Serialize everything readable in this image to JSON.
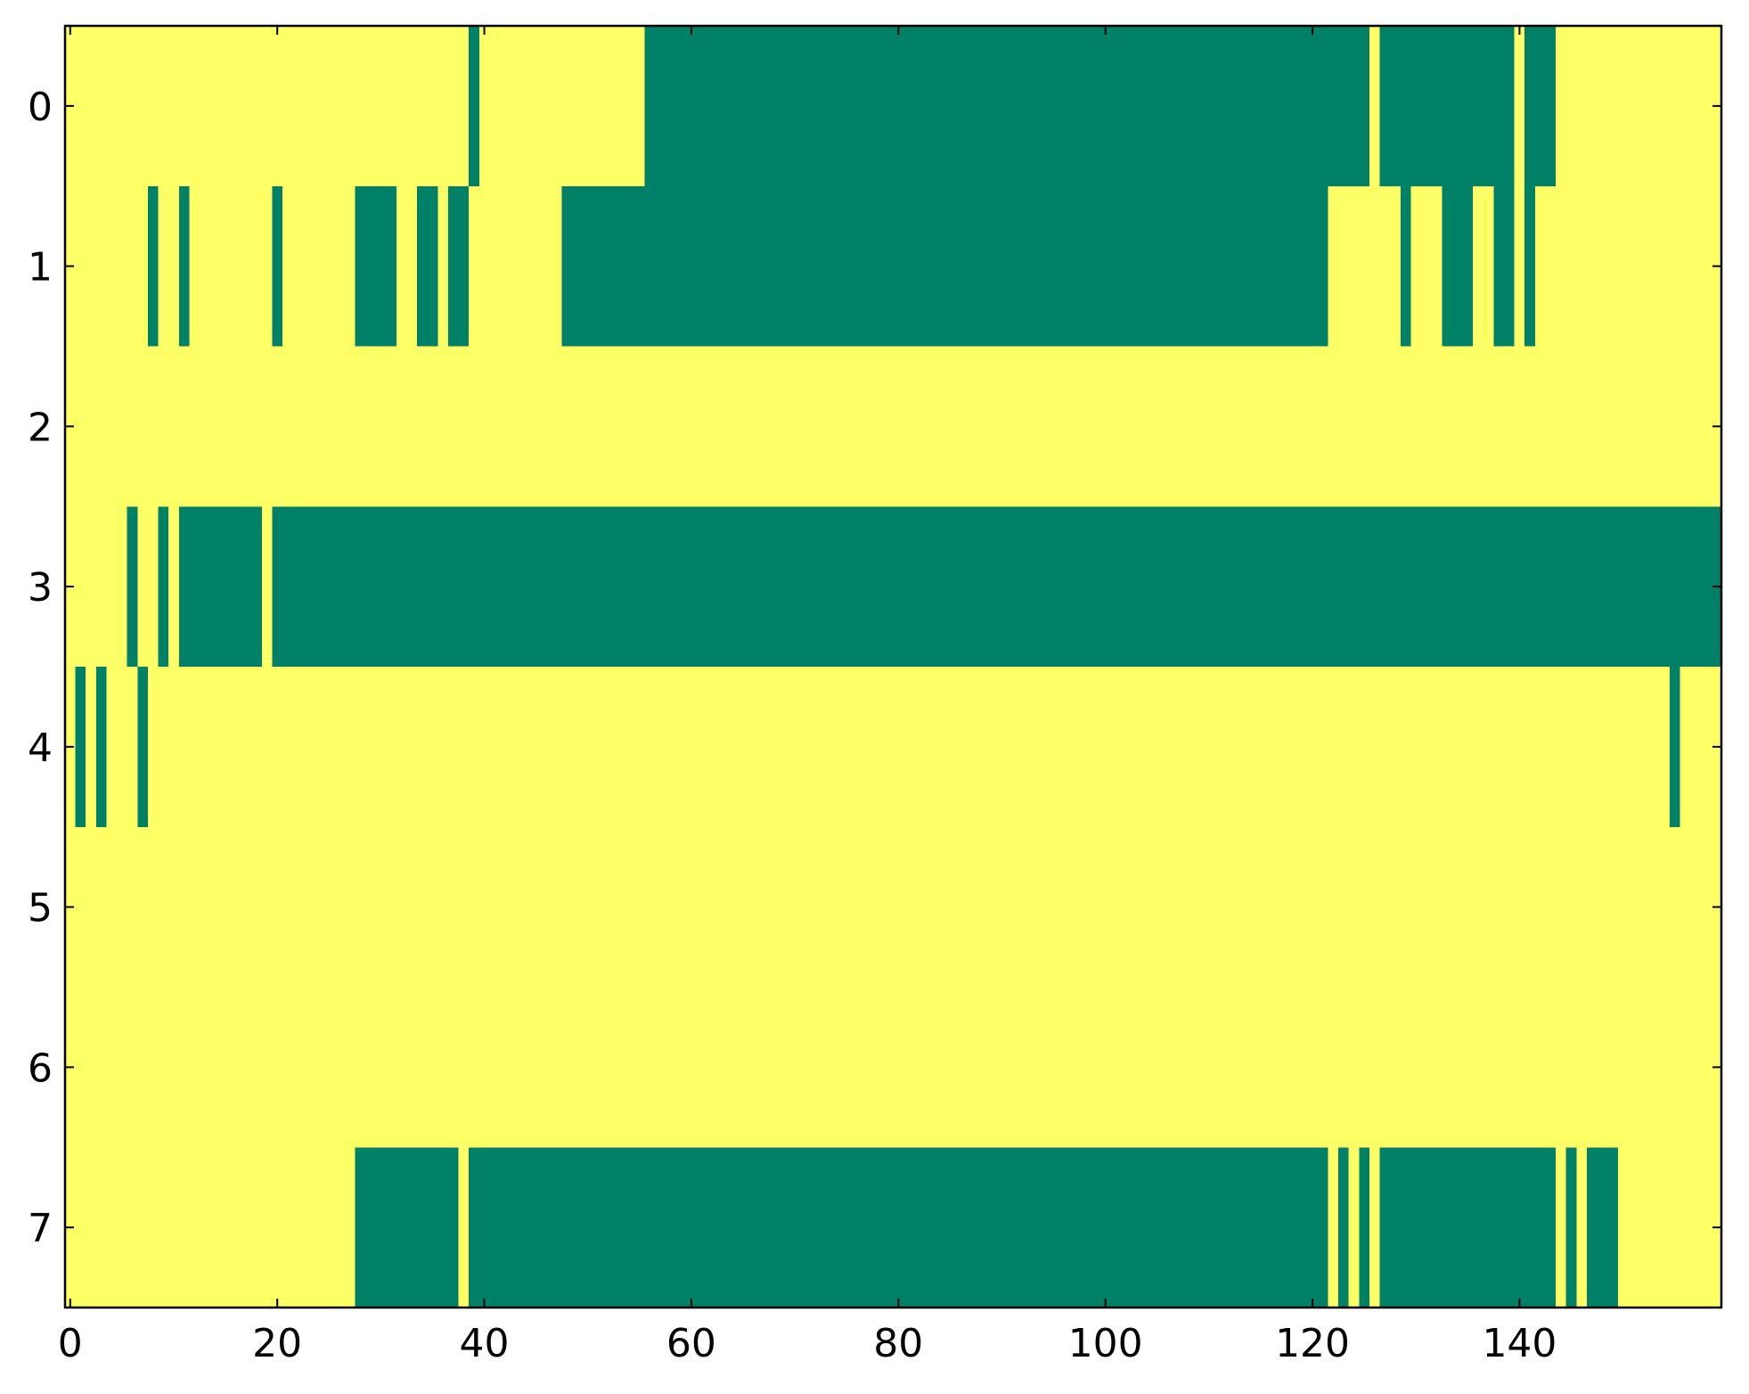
{
  "chart_data": {
    "type": "heatmap",
    "colormap": [
      "#008066",
      "#ffff66"
    ],
    "xlim": [
      -0.5,
      159.5
    ],
    "ylim": [
      7.5,
      -0.5
    ],
    "xticks": [
      0,
      20,
      40,
      60,
      80,
      100,
      120,
      140
    ],
    "yticks": [
      0,
      1,
      2,
      3,
      4,
      5,
      6,
      7
    ],
    "values": [
      [
        1,
        1,
        1,
        1,
        1,
        1,
        1,
        1,
        1,
        1,
        1,
        1,
        1,
        1,
        1,
        1,
        1,
        1,
        1,
        1,
        1,
        1,
        1,
        1,
        1,
        1,
        1,
        1,
        1,
        1,
        1,
        1,
        1,
        1,
        1,
        1,
        1,
        1,
        1,
        0,
        1,
        1,
        1,
        1,
        1,
        1,
        1,
        1,
        1,
        1,
        1,
        1,
        1,
        1,
        1,
        1,
        0,
        0,
        0,
        0,
        0,
        0,
        0,
        0,
        0,
        0,
        0,
        0,
        0,
        0,
        0,
        0,
        0,
        0,
        0,
        0,
        0,
        0,
        0,
        0,
        0,
        0,
        0,
        0,
        0,
        0,
        0,
        0,
        0,
        0,
        0,
        0,
        0,
        0,
        0,
        0,
        0,
        0,
        0,
        0,
        0,
        0,
        0,
        0,
        0,
        0,
        0,
        0,
        0,
        0,
        0,
        0,
        0,
        0,
        0,
        0,
        0,
        0,
        0,
        0,
        0,
        0,
        0,
        0,
        0,
        0,
        1,
        0,
        0,
        0,
        0,
        0,
        0,
        0,
        0,
        0,
        0,
        0,
        0,
        0,
        1,
        0,
        0,
        0,
        1,
        1,
        1,
        1,
        1,
        1,
        1,
        1,
        1,
        1,
        1,
        1,
        1,
        1,
        1,
        1
      ],
      [
        1,
        1,
        1,
        1,
        1,
        1,
        1,
        1,
        0,
        1,
        1,
        0,
        1,
        1,
        1,
        1,
        1,
        1,
        1,
        1,
        0,
        1,
        1,
        1,
        1,
        1,
        1,
        1,
        0,
        0,
        0,
        0,
        1,
        1,
        0,
        0,
        1,
        0,
        0,
        1,
        1,
        1,
        1,
        1,
        1,
        1,
        1,
        1,
        0,
        0,
        0,
        0,
        0,
        0,
        0,
        0,
        0,
        0,
        0,
        0,
        0,
        0,
        0,
        0,
        0,
        0,
        0,
        0,
        0,
        0,
        0,
        0,
        0,
        0,
        0,
        0,
        0,
        0,
        0,
        0,
        0,
        0,
        0,
        0,
        0,
        0,
        0,
        0,
        0,
        0,
        0,
        0,
        0,
        0,
        0,
        0,
        0,
        0,
        0,
        0,
        0,
        0,
        0,
        0,
        0,
        0,
        0,
        0,
        0,
        0,
        0,
        0,
        0,
        0,
        0,
        0,
        0,
        0,
        0,
        0,
        0,
        0,
        1,
        1,
        1,
        1,
        1,
        1,
        1,
        0,
        1,
        1,
        1,
        0,
        0,
        0,
        1,
        1,
        0,
        0,
        1,
        0,
        1,
        1,
        1,
        1,
        1,
        1,
        1,
        1,
        1,
        1,
        1,
        1,
        1,
        1,
        1,
        1,
        1,
        1
      ],
      [
        1,
        1,
        1,
        1,
        1,
        1,
        1,
        1,
        1,
        1,
        1,
        1,
        1,
        1,
        1,
        1,
        1,
        1,
        1,
        1,
        1,
        1,
        1,
        1,
        1,
        1,
        1,
        1,
        1,
        1,
        1,
        1,
        1,
        1,
        1,
        1,
        1,
        1,
        1,
        1,
        1,
        1,
        1,
        1,
        1,
        1,
        1,
        1,
        1,
        1,
        1,
        1,
        1,
        1,
        1,
        1,
        1,
        1,
        1,
        1,
        1,
        1,
        1,
        1,
        1,
        1,
        1,
        1,
        1,
        1,
        1,
        1,
        1,
        1,
        1,
        1,
        1,
        1,
        1,
        1,
        1,
        1,
        1,
        1,
        1,
        1,
        1,
        1,
        1,
        1,
        1,
        1,
        1,
        1,
        1,
        1,
        1,
        1,
        1,
        1,
        1,
        1,
        1,
        1,
        1,
        1,
        1,
        1,
        1,
        1,
        1,
        1,
        1,
        1,
        1,
        1,
        1,
        1,
        1,
        1,
        1,
        1,
        1,
        1,
        1,
        1,
        1,
        1,
        1,
        1,
        1,
        1,
        1,
        1,
        1,
        1,
        1,
        1,
        1,
        1,
        1,
        1,
        1,
        1,
        1,
        1,
        1,
        1,
        1,
        1,
        1,
        1,
        1,
        1,
        1,
        1,
        1,
        1,
        1,
        1
      ],
      [
        1,
        1,
        1,
        1,
        1,
        1,
        0,
        1,
        1,
        0,
        1,
        0,
        0,
        0,
        0,
        0,
        0,
        0,
        0,
        1,
        0,
        0,
        0,
        0,
        0,
        0,
        0,
        0,
        0,
        0,
        0,
        0,
        0,
        0,
        0,
        0,
        0,
        0,
        0,
        0,
        0,
        0,
        0,
        0,
        0,
        0,
        0,
        0,
        0,
        0,
        0,
        0,
        0,
        0,
        0,
        0,
        0,
        0,
        0,
        0,
        0,
        0,
        0,
        0,
        0,
        0,
        0,
        0,
        0,
        0,
        0,
        0,
        0,
        0,
        0,
        0,
        0,
        0,
        0,
        0,
        0,
        0,
        0,
        0,
        0,
        0,
        0,
        0,
        0,
        0,
        0,
        0,
        0,
        0,
        0,
        0,
        0,
        0,
        0,
        0,
        0,
        0,
        0,
        0,
        0,
        0,
        0,
        0,
        0,
        0,
        0,
        0,
        0,
        0,
        0,
        0,
        0,
        0,
        0,
        0,
        0,
        0,
        0,
        0,
        0,
        0,
        0,
        0,
        0,
        0,
        0,
        0,
        0,
        0,
        0,
        0,
        0,
        0,
        0,
        0,
        0,
        0,
        0,
        0,
        0,
        0,
        0,
        0,
        0,
        0,
        0,
        0,
        0,
        0,
        0,
        0,
        0,
        0,
        0,
        0
      ],
      [
        1,
        0,
        1,
        0,
        1,
        1,
        1,
        0,
        1,
        1,
        1,
        1,
        1,
        1,
        1,
        1,
        1,
        1,
        1,
        1,
        1,
        1,
        1,
        1,
        1,
        1,
        1,
        1,
        1,
        1,
        1,
        1,
        1,
        1,
        1,
        1,
        1,
        1,
        1,
        1,
        1,
        1,
        1,
        1,
        1,
        1,
        1,
        1,
        1,
        1,
        1,
        1,
        1,
        1,
        1,
        1,
        1,
        1,
        1,
        1,
        1,
        1,
        1,
        1,
        1,
        1,
        1,
        1,
        1,
        1,
        1,
        1,
        1,
        1,
        1,
        1,
        1,
        1,
        1,
        1,
        1,
        1,
        1,
        1,
        1,
        1,
        1,
        1,
        1,
        1,
        1,
        1,
        1,
        1,
        1,
        1,
        1,
        1,
        1,
        1,
        1,
        1,
        1,
        1,
        1,
        1,
        1,
        1,
        1,
        1,
        1,
        1,
        1,
        1,
        1,
        1,
        1,
        1,
        1,
        1,
        1,
        1,
        1,
        1,
        1,
        1,
        1,
        1,
        1,
        1,
        1,
        1,
        1,
        1,
        1,
        1,
        1,
        1,
        1,
        1,
        1,
        1,
        1,
        1,
        1,
        1,
        1,
        1,
        1,
        1,
        1,
        1,
        1,
        1,
        1,
        0,
        1,
        1,
        1,
        1
      ],
      [
        1,
        1,
        1,
        1,
        1,
        1,
        1,
        1,
        1,
        1,
        1,
        1,
        1,
        1,
        1,
        1,
        1,
        1,
        1,
        1,
        1,
        1,
        1,
        1,
        1,
        1,
        1,
        1,
        1,
        1,
        1,
        1,
        1,
        1,
        1,
        1,
        1,
        1,
        1,
        1,
        1,
        1,
        1,
        1,
        1,
        1,
        1,
        1,
        1,
        1,
        1,
        1,
        1,
        1,
        1,
        1,
        1,
        1,
        1,
        1,
        1,
        1,
        1,
        1,
        1,
        1,
        1,
        1,
        1,
        1,
        1,
        1,
        1,
        1,
        1,
        1,
        1,
        1,
        1,
        1,
        1,
        1,
        1,
        1,
        1,
        1,
        1,
        1,
        1,
        1,
        1,
        1,
        1,
        1,
        1,
        1,
        1,
        1,
        1,
        1,
        1,
        1,
        1,
        1,
        1,
        1,
        1,
        1,
        1,
        1,
        1,
        1,
        1,
        1,
        1,
        1,
        1,
        1,
        1,
        1,
        1,
        1,
        1,
        1,
        1,
        1,
        1,
        1,
        1,
        1,
        1,
        1,
        1,
        1,
        1,
        1,
        1,
        1,
        1,
        1,
        1,
        1,
        1,
        1,
        1,
        1,
        1,
        1,
        1,
        1,
        1,
        1,
        1,
        1,
        1,
        1,
        1,
        1,
        1,
        1
      ],
      [
        1,
        1,
        1,
        1,
        1,
        1,
        1,
        1,
        1,
        1,
        1,
        1,
        1,
        1,
        1,
        1,
        1,
        1,
        1,
        1,
        1,
        1,
        1,
        1,
        1,
        1,
        1,
        1,
        1,
        1,
        1,
        1,
        1,
        1,
        1,
        1,
        1,
        1,
        1,
        1,
        1,
        1,
        1,
        1,
        1,
        1,
        1,
        1,
        1,
        1,
        1,
        1,
        1,
        1,
        1,
        1,
        1,
        1,
        1,
        1,
        1,
        1,
        1,
        1,
        1,
        1,
        1,
        1,
        1,
        1,
        1,
        1,
        1,
        1,
        1,
        1,
        1,
        1,
        1,
        1,
        1,
        1,
        1,
        1,
        1,
        1,
        1,
        1,
        1,
        1,
        1,
        1,
        1,
        1,
        1,
        1,
        1,
        1,
        1,
        1,
        1,
        1,
        1,
        1,
        1,
        1,
        1,
        1,
        1,
        1,
        1,
        1,
        1,
        1,
        1,
        1,
        1,
        1,
        1,
        1,
        1,
        1,
        1,
        1,
        1,
        1,
        1,
        1,
        1,
        1,
        1,
        1,
        1,
        1,
        1,
        1,
        1,
        1,
        1,
        1,
        1,
        1,
        1,
        1,
        1,
        1,
        1,
        1,
        1,
        1,
        1,
        1,
        1,
        1,
        1,
        1,
        1,
        1,
        1,
        1
      ],
      [
        1,
        1,
        1,
        1,
        1,
        1,
        1,
        1,
        1,
        1,
        1,
        1,
        1,
        1,
        1,
        1,
        1,
        1,
        1,
        1,
        1,
        1,
        1,
        1,
        1,
        1,
        1,
        1,
        0,
        0,
        0,
        0,
        0,
        0,
        0,
        0,
        0,
        0,
        1,
        0,
        0,
        0,
        0,
        0,
        0,
        0,
        0,
        0,
        0,
        0,
        0,
        0,
        0,
        0,
        0,
        0,
        0,
        0,
        0,
        0,
        0,
        0,
        0,
        0,
        0,
        0,
        0,
        0,
        0,
        0,
        0,
        0,
        0,
        0,
        0,
        0,
        0,
        0,
        0,
        0,
        0,
        0,
        0,
        0,
        0,
        0,
        0,
        0,
        0,
        0,
        0,
        0,
        0,
        0,
        0,
        0,
        0,
        0,
        0,
        0,
        0,
        0,
        0,
        0,
        0,
        0,
        0,
        0,
        0,
        0,
        0,
        0,
        0,
        0,
        0,
        0,
        0,
        0,
        0,
        0,
        0,
        0,
        1,
        0,
        1,
        0,
        1,
        0,
        0,
        0,
        0,
        0,
        0,
        0,
        0,
        0,
        0,
        0,
        0,
        0,
        0,
        0,
        0,
        0,
        1,
        0,
        1,
        0,
        0,
        0,
        1,
        1,
        1,
        1,
        1,
        1,
        1,
        1,
        1,
        1
      ]
    ]
  }
}
